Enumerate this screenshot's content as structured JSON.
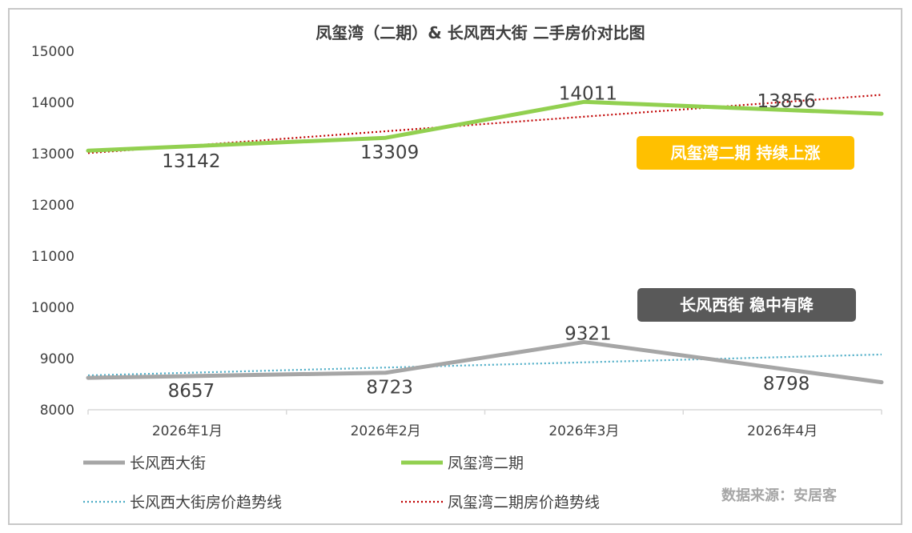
{
  "chart_data": {
    "type": "line",
    "title": "凤玺湾（二期）& 长风西大街  二手房价对比图",
    "categories": [
      "2026年1月",
      "2026年2月",
      "2026年3月",
      "2026年4月"
    ],
    "ylim": [
      8000,
      15000
    ],
    "yticks": [
      8000,
      9000,
      10000,
      11000,
      12000,
      13000,
      14000,
      15000
    ],
    "grid": false,
    "legend_position": "bottom",
    "series": [
      {
        "name": "长风西大街",
        "values": [
          8657,
          8723,
          9321,
          8798
        ],
        "color": "#a6a6a6"
      },
      {
        "name": "凤玺湾二期",
        "values": [
          13142,
          13309,
          14011,
          13856
        ],
        "color": "#92d050"
      }
    ],
    "trendlines": [
      {
        "name": "长风西大街房价趋势线",
        "color": "#4bacc6"
      },
      {
        "name": "凤玺湾二期房价趋势线",
        "color": "#c00000"
      }
    ],
    "annotations": [
      {
        "text": "凤玺湾二期 持续上涨",
        "color": "#ffc000"
      },
      {
        "text": "长风西街 稳中有降",
        "color": "#595959"
      }
    ],
    "source": "数据来源：安居客"
  }
}
